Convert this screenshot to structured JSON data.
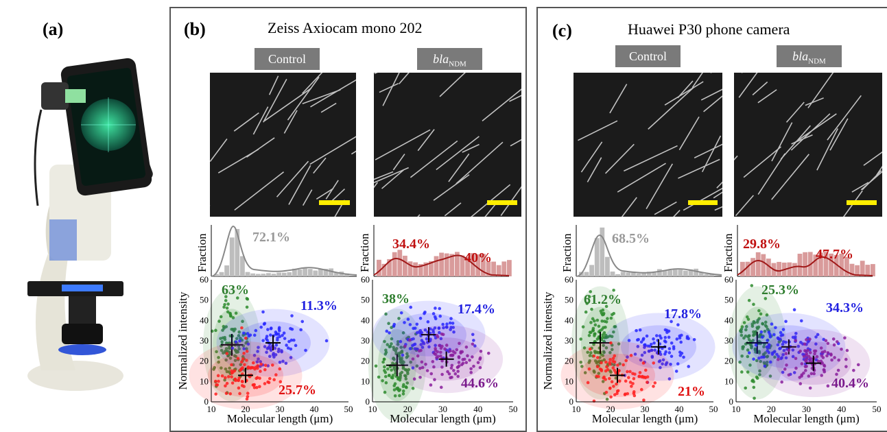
{
  "panel_a": {
    "label": "(a)"
  },
  "panel_b": {
    "label": "(b)",
    "title": "Zeiss Axiocam mono 202",
    "control_label": "Control",
    "bla_label_main": "bla",
    "bla_label_sub": "NDM",
    "hist_control_pct": "72.1%",
    "hist_bla_pct_left": "34.4%",
    "hist_bla_pct_right": "40%",
    "scatter_control_pcts": {
      "green": "63%",
      "blue": "11.3%",
      "red": "25.7%"
    },
    "scatter_bla_pcts": {
      "green": "38%",
      "blue": "17.4%",
      "purple": "44.6%"
    }
  },
  "panel_c": {
    "label": "(c)",
    "title": "Huawei P30 phone camera",
    "control_label": "Control",
    "bla_label_main": "bla",
    "bla_label_sub": "NDM",
    "hist_control_pct": "68.5%",
    "hist_bla_pct_left": "29.8%",
    "hist_bla_pct_right": "47.7%",
    "scatter_control_pcts": {
      "green": "61.2%",
      "blue": "17.8%",
      "red": "21%"
    },
    "scatter_bla_pcts": {
      "green": "25.3%",
      "blue": "34.3%",
      "purple": "40.4%"
    }
  },
  "axes": {
    "fraction_label": "Fraction",
    "intensity_label": "Normalized intensity",
    "length_label": "Molecular length (μm)",
    "x_ticks": [
      "10",
      "20",
      "30",
      "40",
      "50"
    ],
    "y_ticks": [
      "0",
      "10",
      "20",
      "30",
      "40",
      "50",
      "60"
    ]
  },
  "chart_data": [
    {
      "type": "scatter",
      "panel": "b-control",
      "xlim": [
        10,
        50
      ],
      "ylim": [
        0,
        60
      ],
      "series": [
        {
          "name": "63%",
          "color": "#2e8b2e",
          "center": [
            16,
            28
          ]
        },
        {
          "name": "11.3%",
          "color": "#2828ff",
          "center": [
            28,
            29
          ]
        },
        {
          "name": "25.7%",
          "color": "#ff2020",
          "center": [
            20,
            13
          ]
        }
      ]
    },
    {
      "type": "scatter",
      "panel": "b-bla",
      "xlim": [
        10,
        50
      ],
      "ylim": [
        0,
        60
      ],
      "series": [
        {
          "name": "38%",
          "color": "#2e8b2e",
          "center": [
            17,
            18
          ]
        },
        {
          "name": "17.4%",
          "color": "#2828ff",
          "center": [
            26,
            33
          ]
        },
        {
          "name": "44.6%",
          "color": "#8a1f9c",
          "center": [
            31,
            21
          ]
        }
      ]
    },
    {
      "type": "scatter",
      "panel": "c-control",
      "xlim": [
        10,
        50
      ],
      "ylim": [
        0,
        60
      ],
      "series": [
        {
          "name": "61.2%",
          "color": "#2e8b2e",
          "center": [
            17,
            29
          ]
        },
        {
          "name": "17.8%",
          "color": "#2828ff",
          "center": [
            34,
            27
          ]
        },
        {
          "name": "21%",
          "color": "#ff2020",
          "center": [
            22,
            13
          ]
        }
      ]
    },
    {
      "type": "scatter",
      "panel": "c-bla",
      "xlim": [
        10,
        50
      ],
      "ylim": [
        0,
        60
      ],
      "series": [
        {
          "name": "25.3%",
          "color": "#2e8b2e",
          "center": [
            16,
            29
          ]
        },
        {
          "name": "34.3%",
          "color": "#2828ff",
          "center": [
            25,
            27
          ]
        },
        {
          "name": "40.4%",
          "color": "#8a1f9c",
          "center": [
            32,
            19
          ]
        }
      ]
    }
  ]
}
